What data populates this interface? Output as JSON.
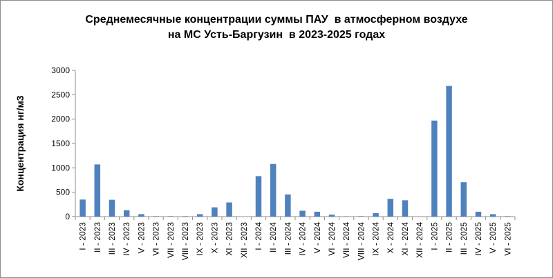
{
  "chart_data": {
    "type": "bar",
    "title_line1": "Среднемесячные концентрации суммы ПАУ  в атмосферном воздухе",
    "title_line2": "на МС Усть-Баргузин  в 2023-2025 годах",
    "xlabel": "",
    "ylabel": "Концентрация нг/м3",
    "ylim": [
      0,
      3000
    ],
    "yticks": [
      "0",
      "500",
      "1000",
      "1500",
      "2000",
      "2500",
      "3000"
    ],
    "grid": false,
    "bar_color": "#4f81bd",
    "categories": [
      "I - 2023",
      "II - 2023",
      "III - 2023",
      "IV - 2023",
      "V - 2023",
      "VI - 2023",
      "VII - 2023",
      "VIII - 2023",
      "IX - 2023",
      "X - 2023",
      "XI - 2023",
      "XII - 2023",
      "I - 2024",
      "II - 2024",
      "III - 2024",
      "IV - 2024",
      "V - 2024",
      "VI - 2024",
      "VII - 2024",
      "VIII - 2024",
      "IX - 2024",
      "X - 2024",
      "XI - 2024",
      "XII - 2024",
      "I - 2025",
      "II - 2025",
      "III - 2025",
      "IV - 2025",
      "V - 2025",
      "VI - 2025"
    ],
    "values": [
      350,
      1070,
      345,
      130,
      50,
      10,
      10,
      10,
      50,
      190,
      290,
      0,
      830,
      1080,
      455,
      120,
      100,
      40,
      8,
      10,
      70,
      365,
      335,
      0,
      1970,
      2680,
      705,
      100,
      50,
      10
    ]
  }
}
